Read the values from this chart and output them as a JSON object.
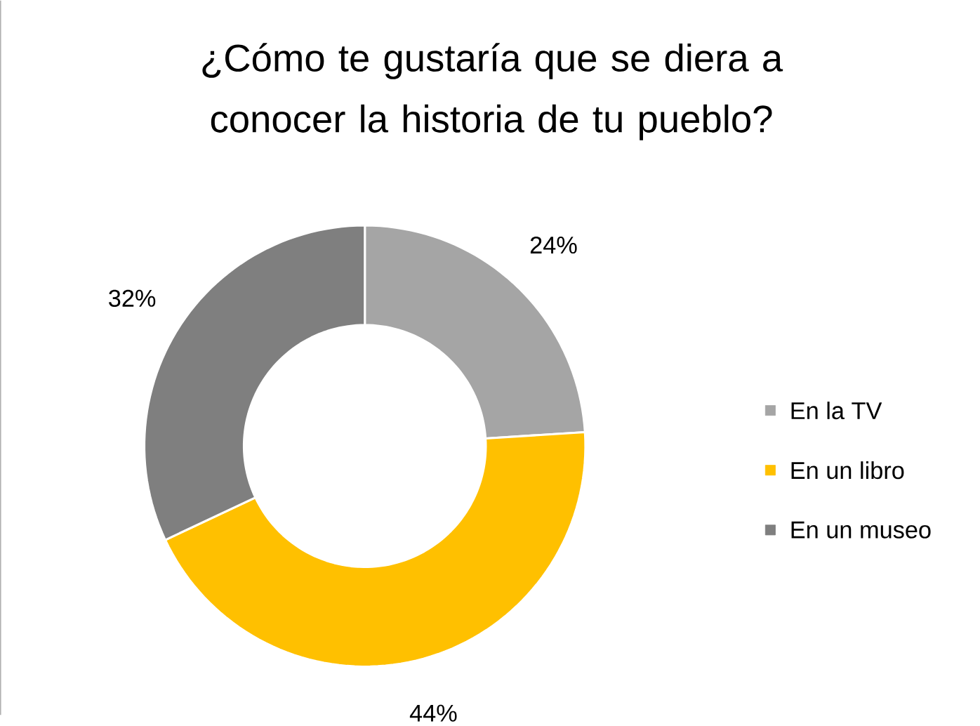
{
  "chart_data": {
    "type": "donut",
    "title": "¿Cómo te gustaría que se diera a conocer la historia de tu pueblo?",
    "categories": [
      "En la TV",
      "En un libro",
      "En un museo"
    ],
    "values": [
      24,
      44,
      32
    ],
    "value_labels": [
      "24%",
      "44%",
      "32%"
    ],
    "colors": [
      "#a5a5a5",
      "#ffc000",
      "#7f7f7f"
    ],
    "legend": "right"
  }
}
